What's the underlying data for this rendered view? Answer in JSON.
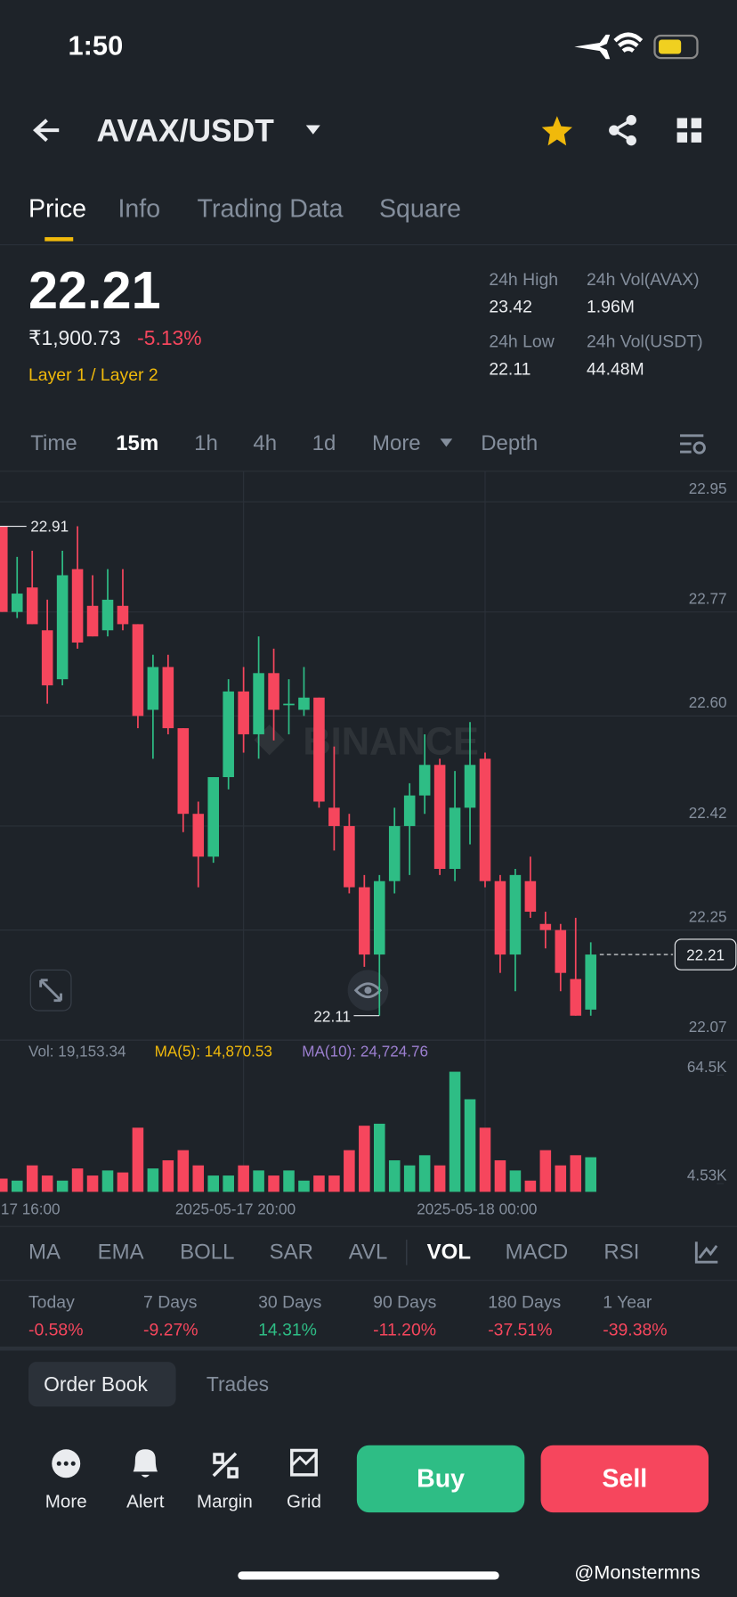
{
  "status": {
    "time": "1:50"
  },
  "header": {
    "pair": "AVAX/USDT"
  },
  "tabs": [
    "Price",
    "Info",
    "Trading Data",
    "Square"
  ],
  "price": {
    "last": "22.21",
    "fiat": "₹1,900.73",
    "change": "-5.13%",
    "tags": "Layer 1 / Layer 2"
  },
  "stats": [
    {
      "label": "24h High",
      "value": "23.42"
    },
    {
      "label": "24h Vol(AVAX)",
      "value": "1.96M"
    },
    {
      "label": "24h Low",
      "value": "22.11"
    },
    {
      "label": "24h Vol(USDT)",
      "value": "44.48M"
    }
  ],
  "intervals": [
    "Time",
    "15m",
    "1h",
    "4h",
    "1d",
    "More",
    "Depth"
  ],
  "chart_data": {
    "type": "candlestick",
    "categories": [
      "17 16:00",
      null,
      null,
      null,
      null,
      null,
      null,
      null,
      null,
      null,
      null,
      null,
      null,
      null,
      null,
      null,
      "2025-05-17 20:00",
      null,
      null,
      null,
      null,
      null,
      null,
      null,
      null,
      null,
      null,
      null,
      null,
      null,
      null,
      null,
      "2025-05-18 00:00",
      null,
      null,
      null,
      null,
      null,
      null,
      null
    ],
    "open": [
      22.91,
      22.77,
      22.81,
      22.74,
      22.66,
      22.84,
      22.78,
      22.74,
      22.78,
      22.75,
      22.61,
      22.68,
      22.58,
      22.44,
      22.37,
      22.5,
      22.64,
      22.57,
      22.67,
      22.62,
      22.61,
      22.63,
      22.45,
      22.42,
      22.32,
      22.21,
      22.33,
      22.42,
      22.47,
      22.52,
      22.35,
      22.45,
      22.53,
      22.33,
      22.21,
      22.33,
      22.26,
      22.25,
      22.17,
      22.12
    ],
    "high": [
      22.91,
      22.86,
      22.87,
      22.79,
      22.87,
      22.91,
      22.83,
      22.84,
      22.84,
      22.75,
      22.7,
      22.7,
      22.58,
      22.46,
      22.5,
      22.66,
      22.68,
      22.73,
      22.71,
      22.66,
      22.68,
      22.63,
      22.55,
      22.44,
      22.34,
      22.34,
      22.45,
      22.49,
      22.57,
      22.53,
      22.51,
      22.59,
      22.54,
      22.34,
      22.35,
      22.37,
      22.28,
      22.26,
      22.27,
      22.23
    ],
    "low": [
      22.77,
      22.76,
      22.75,
      22.62,
      22.65,
      22.71,
      22.73,
      22.73,
      22.74,
      22.58,
      22.53,
      22.57,
      22.41,
      22.32,
      22.36,
      22.48,
      22.54,
      22.53,
      22.56,
      22.57,
      22.6,
      22.45,
      22.38,
      22.31,
      22.19,
      22.11,
      22.31,
      22.34,
      22.44,
      22.34,
      22.33,
      22.39,
      22.32,
      22.18,
      22.15,
      22.27,
      22.22,
      22.15,
      22.11,
      22.11
    ],
    "close": [
      22.77,
      22.8,
      22.75,
      22.65,
      22.83,
      22.72,
      22.73,
      22.79,
      22.75,
      22.6,
      22.68,
      22.58,
      22.44,
      22.37,
      22.5,
      22.64,
      22.57,
      22.67,
      22.61,
      22.62,
      22.63,
      22.46,
      22.42,
      22.32,
      22.21,
      22.33,
      22.42,
      22.47,
      22.52,
      22.35,
      22.45,
      22.52,
      22.33,
      22.21,
      22.34,
      22.28,
      22.25,
      22.18,
      22.11,
      22.21
    ],
    "up_color": "#2ebd85",
    "down_color": "#f6465d",
    "ylim": [
      22.07,
      23.0
    ],
    "yticks": [
      22.95,
      22.77,
      {
        "value": 22.6,
        "label": "22.60"
      },
      22.42,
      22.25,
      22.07
    ],
    "high_label": 22.91,
    "low_label": 22.11,
    "last_label": 22.21,
    "volume": {
      "values": [
        7.3,
        6.2,
        14.6,
        9.0,
        6.2,
        12.9,
        9.0,
        11.8,
        10.7,
        35.4,
        12.9,
        17.4,
        23.0,
        14.6,
        9.0,
        9.0,
        14.6,
        11.8,
        9.0,
        11.8,
        6.2,
        9.0,
        9.0,
        23.0,
        36.5,
        37.6,
        17.4,
        14.6,
        20.2,
        14.6,
        66.3,
        51.1,
        35.4,
        17.4,
        11.8,
        6.2,
        23.0,
        14.6,
        20.2,
        19.1
      ],
      "ylim": [
        0,
        70
      ],
      "yticks": [
        {
          "value": 64.5,
          "label": "64.5K"
        },
        {
          "value": 4.53,
          "label": "4.53K"
        }
      ],
      "vol_text": "Vol: 19,153.34",
      "ma5_text": "MA(5): 14,870.53",
      "ma10_text": "MA(10): 24,724.76"
    },
    "grid": true
  },
  "indicator_tabs": [
    "MA",
    "EMA",
    "BOLL",
    "SAR",
    "AVL",
    "VOL",
    "MACD",
    "RSI"
  ],
  "performance": [
    {
      "label": "Today",
      "value": "-0.58%"
    },
    {
      "label": "7 Days",
      "value": "-9.27%"
    },
    {
      "label": "30 Days",
      "value": "14.31%"
    },
    {
      "label": "90 Days",
      "value": "-11.20%"
    },
    {
      "label": "180 Days",
      "value": "-37.51%"
    },
    {
      "label": "1 Year",
      "value": "-39.38%"
    }
  ],
  "book_tabs": [
    "Order Book",
    "Trades"
  ],
  "actions": [
    "More",
    "Alert",
    "Margin",
    "Grid"
  ],
  "buttons": {
    "buy": "Buy",
    "sell": "Sell"
  },
  "watermark": "@Monstermns"
}
